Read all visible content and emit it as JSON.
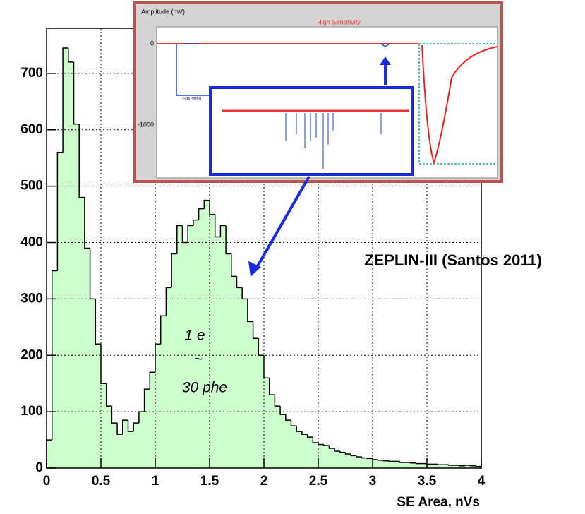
{
  "chart_data": {
    "type": "histogram",
    "x_label": "SE Area, nVs",
    "bins": [
      0,
      0.05,
      0.1,
      0.15,
      0.2,
      0.25,
      0.3,
      0.35,
      0.4,
      0.45,
      0.5,
      0.55,
      0.6,
      0.65,
      0.7,
      0.75,
      0.8,
      0.85,
      0.9,
      0.95,
      1,
      1.05,
      1.1,
      1.15,
      1.2,
      1.25,
      1.3,
      1.35,
      1.4,
      1.45,
      1.5,
      1.55,
      1.6,
      1.65,
      1.7,
      1.75,
      1.8,
      1.85,
      1.9,
      1.95,
      2,
      2.05,
      2.1,
      2.15,
      2.2,
      2.25,
      2.3,
      2.35,
      2.4,
      2.45,
      2.5,
      2.55,
      2.6,
      2.65,
      2.7,
      2.75,
      2.8,
      2.85,
      2.9,
      2.95,
      3,
      3.05,
      3.1,
      3.15,
      3.2,
      3.25,
      3.3,
      3.35,
      3.4,
      3.45,
      3.5,
      3.55,
      3.6,
      3.65,
      3.7,
      3.75,
      3.8,
      3.85,
      3.9,
      3.95,
      4
    ],
    "values": [
      50,
      350,
      560,
      745,
      720,
      610,
      480,
      390,
      300,
      220,
      150,
      110,
      80,
      60,
      85,
      65,
      80,
      100,
      140,
      170,
      220,
      270,
      320,
      380,
      430,
      400,
      430,
      440,
      460,
      475,
      450,
      410,
      430,
      380,
      340,
      320,
      300,
      260,
      230,
      200,
      160,
      130,
      110,
      95,
      85,
      75,
      65,
      60,
      55,
      45,
      42,
      40,
      35,
      30,
      28,
      25,
      22,
      20,
      18,
      17,
      15,
      14,
      13,
      12,
      12,
      10,
      10,
      9,
      8,
      8,
      7,
      7,
      6,
      6,
      5,
      5,
      4,
      5,
      4,
      3
    ],
    "color": "#ccffcc",
    "xlim": [
      0,
      4
    ],
    "xticks": [
      0,
      0.5,
      1,
      1.5,
      2,
      2.5,
      3,
      3.5,
      4
    ],
    "ylim": [
      0,
      780
    ],
    "yticks": [
      0,
      100,
      200,
      300,
      400,
      500,
      600,
      700
    ],
    "grid": true,
    "annotations": [
      "1 e",
      "~",
      "30 phe",
      "ZEPLIN-III (Santos 2011)"
    ],
    "inset": {
      "y_label": "Amplitude (mV)",
      "title": "High Sensitivity",
      "yticks": [
        "0",
        "-1000"
      ],
      "note": "Saturated"
    }
  }
}
